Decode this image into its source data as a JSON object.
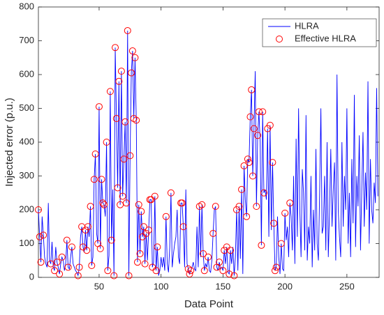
{
  "chart_data": {
    "type": "line",
    "xlabel": "Data Point",
    "ylabel": "Injected error (p.u.)",
    "xlim": [
      1,
      276
    ],
    "xticks": [
      50,
      100,
      150,
      200,
      250
    ],
    "ylim": [
      0,
      800
    ],
    "yticks": [
      0,
      100,
      200,
      300,
      400,
      500,
      600,
      700,
      800
    ],
    "legend": "upper right",
    "series": [
      {
        "name": "HLRA",
        "color": "#0000ff",
        "type": "line",
        "x": [
          1,
          2,
          3,
          4,
          5,
          6,
          7,
          8,
          9,
          10,
          11,
          12,
          13,
          14,
          15,
          16,
          17,
          18,
          19,
          20,
          21,
          22,
          23,
          24,
          25,
          26,
          27,
          28,
          29,
          30,
          31,
          32,
          33,
          34,
          35,
          36,
          37,
          38,
          39,
          40,
          41,
          42,
          43,
          44,
          45,
          46,
          47,
          48,
          49,
          50,
          51,
          52,
          53,
          54,
          55,
          56,
          57,
          58,
          59,
          60,
          61,
          62,
          63,
          64,
          65,
          66,
          67,
          68,
          69,
          70,
          71,
          72,
          73,
          74,
          75,
          76,
          77,
          78,
          79,
          80,
          81,
          82,
          83,
          84,
          85,
          86,
          87,
          88,
          89,
          90,
          91,
          92,
          93,
          94,
          95,
          96,
          97,
          98,
          99,
          100,
          101,
          102,
          103,
          104,
          105,
          106,
          107,
          108,
          109,
          110,
          111,
          112,
          113,
          114,
          115,
          116,
          117,
          118,
          119,
          120,
          121,
          122,
          123,
          124,
          125,
          126,
          127,
          128,
          129,
          130,
          131,
          132,
          133,
          134,
          135,
          136,
          137,
          138,
          139,
          140,
          141,
          142,
          143,
          144,
          145,
          146,
          147,
          148,
          149,
          150,
          151,
          152,
          153,
          154,
          155,
          156,
          157,
          158,
          159,
          160,
          161,
          162,
          163,
          164,
          165,
          166,
          167,
          168,
          169,
          170,
          171,
          172,
          173,
          174,
          175,
          176,
          177,
          178,
          179,
          180,
          181,
          182,
          183,
          184,
          185,
          186,
          187,
          188,
          189,
          190,
          191,
          192,
          193,
          194,
          195,
          196,
          197,
          198,
          199,
          200,
          201,
          202,
          203,
          204,
          205,
          206,
          207,
          208,
          209,
          210,
          211,
          212,
          213,
          214,
          215,
          216,
          217,
          218,
          219,
          220,
          221,
          222,
          223,
          224,
          225,
          226,
          227,
          228,
          229,
          230,
          231,
          232,
          233,
          234,
          235,
          236,
          237,
          238,
          239,
          240,
          241,
          242,
          243,
          244,
          245,
          246,
          247,
          248,
          249,
          250,
          251,
          252,
          253,
          254,
          255,
          256,
          257,
          258,
          259,
          260,
          261,
          262,
          263,
          264,
          265,
          266,
          267,
          268,
          269,
          270,
          271,
          272,
          273,
          274,
          275
        ],
        "values": [
          200,
          120,
          45,
          180,
          125,
          60,
          40,
          30,
          220,
          50,
          40,
          105,
          30,
          20,
          90,
          45,
          30,
          10,
          40,
          60,
          50,
          20,
          40,
          110,
          30,
          25,
          60,
          90,
          40,
          30,
          20,
          15,
          5,
          30,
          120,
          150,
          90,
          75,
          140,
          80,
          150,
          120,
          210,
          35,
          60,
          290,
          365,
          130,
          100,
          505,
          85,
          290,
          220,
          215,
          180,
          400,
          20,
          65,
          550,
          110,
          260,
          5,
          680,
          470,
          265,
          580,
          215,
          610,
          240,
          350,
          460,
          220,
          730,
          5,
          360,
          605,
          670,
          470,
          650,
          465,
          45,
          215,
          70,
          195,
          120,
          150,
          40,
          130,
          50,
          140,
          230,
          230,
          30,
          45,
          240,
          20,
          90,
          5,
          20,
          60,
          30,
          60,
          20,
          180,
          40,
          15,
          90,
          250,
          30,
          70,
          100,
          120,
          200,
          60,
          40,
          220,
          220,
          150,
          30,
          260,
          40,
          25,
          10,
          20,
          30,
          45,
          25,
          20,
          150,
          30,
          210,
          60,
          215,
          70,
          20,
          40,
          30,
          60,
          20,
          15,
          50,
          130,
          200,
          210,
          30,
          20,
          45,
          25,
          30,
          20,
          80,
          40,
          90,
          15,
          10,
          80,
          40,
          90,
          5,
          60,
          200,
          20,
          210,
          55,
          260,
          10,
          330,
          230,
          180,
          350,
          340,
          475,
          555,
          300,
          440,
          610,
          210,
          420,
          490,
          400,
          95,
          490,
          250,
          260,
          230,
          440,
          120,
          450,
          140,
          340,
          160,
          20,
          30,
          180,
          60,
          10,
          100,
          25,
          20,
          190,
          110,
          150,
          60,
          220,
          180,
          80,
          300,
          40,
          410,
          120,
          500,
          200,
          60,
          320,
          250,
          80,
          480,
          50,
          150,
          100,
          300,
          30,
          200,
          80,
          380,
          100,
          50,
          250,
          500,
          130,
          150,
          300,
          80,
          400,
          60,
          200,
          380,
          150,
          260,
          340,
          50,
          600,
          200,
          120,
          60,
          400,
          150,
          300,
          200,
          500,
          100,
          250,
          60,
          350,
          160,
          540,
          90,
          300,
          210,
          420,
          80,
          260,
          430,
          150,
          310,
          200,
          580,
          100,
          350,
          200,
          160,
          280,
          220,
          560,
          240
        ]
      },
      {
        "name": "Effective HLRA",
        "color": "#ff0000",
        "type": "scatter",
        "x": [
          1,
          2,
          3,
          5,
          11,
          14,
          16,
          18,
          20,
          24,
          25,
          28,
          33,
          34,
          36,
          37,
          39,
          40,
          41,
          43,
          44,
          46,
          47,
          49,
          50,
          51,
          52,
          53,
          54,
          56,
          57,
          59,
          60,
          62,
          63,
          64,
          65,
          66,
          67,
          68,
          69,
          70,
          71,
          72,
          73,
          74,
          75,
          76,
          77,
          78,
          79,
          80,
          81,
          82,
          83,
          84,
          85,
          86,
          87,
          88,
          90,
          91,
          92,
          93,
          95,
          96,
          97,
          104,
          108,
          116,
          117,
          118,
          122,
          123,
          124,
          131,
          133,
          134,
          135,
          138,
          142,
          144,
          145,
          147,
          150,
          151,
          153,
          155,
          156,
          159,
          161,
          163,
          165,
          167,
          169,
          170,
          171,
          172,
          173,
          174,
          175,
          177,
          178,
          179,
          181,
          182,
          183,
          186,
          188,
          190,
          191,
          192,
          193,
          197,
          200,
          204
        ],
        "values": [
          200,
          120,
          45,
          125,
          40,
          20,
          45,
          10,
          60,
          110,
          30,
          90,
          5,
          30,
          150,
          90,
          140,
          80,
          150,
          210,
          35,
          290,
          365,
          100,
          505,
          85,
          290,
          220,
          215,
          400,
          20,
          550,
          110,
          5,
          680,
          470,
          265,
          580,
          215,
          610,
          240,
          350,
          460,
          220,
          730,
          5,
          360,
          605,
          670,
          470,
          650,
          465,
          45,
          215,
          70,
          195,
          120,
          150,
          40,
          130,
          140,
          230,
          230,
          30,
          240,
          20,
          90,
          180,
          250,
          220,
          220,
          150,
          25,
          10,
          20,
          210,
          215,
          70,
          20,
          60,
          130,
          210,
          30,
          45,
          20,
          80,
          90,
          10,
          80,
          5,
          200,
          210,
          260,
          330,
          180,
          350,
          340,
          475,
          555,
          300,
          440,
          210,
          420,
          490,
          95,
          490,
          250,
          440,
          450,
          340,
          160,
          20,
          30,
          100,
          190,
          220
        ]
      }
    ]
  }
}
